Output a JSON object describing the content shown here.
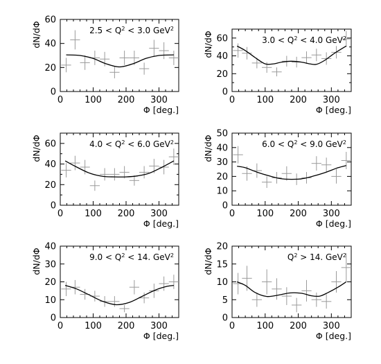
{
  "chart_data": [
    {
      "type": "scatter",
      "title": "",
      "label_parts": [
        "2.5 < Q",
        "2",
        " < 3.0 GeV",
        "2"
      ],
      "xlabel": "Φ [deg.]",
      "ylabel": "dN/dΦ",
      "xlim": [
        0,
        360
      ],
      "ylim": [
        0,
        60
      ],
      "xticks": [
        0,
        100,
        200,
        300
      ],
      "yticks": [
        0,
        20,
        40,
        60
      ],
      "grid": false,
      "points": [
        {
          "x": 18,
          "y": 22,
          "yerr": 6
        },
        {
          "x": 45,
          "y": 43,
          "yerr": 8
        },
        {
          "x": 75,
          "y": 24,
          "yerr": 6
        },
        {
          "x": 105,
          "y": 28,
          "yerr": 6
        },
        {
          "x": 135,
          "y": 27,
          "yerr": 6
        },
        {
          "x": 165,
          "y": 16,
          "yerr": 5
        },
        {
          "x": 195,
          "y": 28,
          "yerr": 6
        },
        {
          "x": 225,
          "y": 28,
          "yerr": 6
        },
        {
          "x": 255,
          "y": 19,
          "yerr": 5
        },
        {
          "x": 285,
          "y": 36,
          "yerr": 7
        },
        {
          "x": 315,
          "y": 34,
          "yerr": 7
        },
        {
          "x": 345,
          "y": 28,
          "yerr": 6
        }
      ],
      "fit": [
        [
          18,
          30.5
        ],
        [
          60,
          30
        ],
        [
          100,
          27.5
        ],
        [
          140,
          23
        ],
        [
          180,
          20.5
        ],
        [
          220,
          23
        ],
        [
          260,
          27.5
        ],
        [
          300,
          30
        ],
        [
          345,
          30.5
        ]
      ]
    },
    {
      "type": "scatter",
      "title": "",
      "label_parts": [
        "3.0 < Q",
        "2",
        " < 4.0 GeV",
        "2"
      ],
      "xlabel": "Φ [deg.]",
      "ylabel": "dN/dΦ",
      "xlim": [
        0,
        360
      ],
      "ylim": [
        0,
        70
      ],
      "xticks": [
        0,
        100,
        200,
        300
      ],
      "yticks": [
        0,
        10,
        20,
        30,
        40,
        50,
        60,
        70
      ],
      "ytick_labels": [
        0,
        20,
        40,
        60
      ],
      "grid": false,
      "points": [
        {
          "x": 18,
          "y": 46,
          "yerr": 8
        },
        {
          "x": 45,
          "y": 43,
          "yerr": 7
        },
        {
          "x": 75,
          "y": 32,
          "yerr": 6
        },
        {
          "x": 105,
          "y": 27,
          "yerr": 6
        },
        {
          "x": 135,
          "y": 22,
          "yerr": 5
        },
        {
          "x": 165,
          "y": 34,
          "yerr": 6
        },
        {
          "x": 195,
          "y": 33,
          "yerr": 6
        },
        {
          "x": 225,
          "y": 38,
          "yerr": 7
        },
        {
          "x": 255,
          "y": 41,
          "yerr": 7
        },
        {
          "x": 285,
          "y": 37,
          "yerr": 7
        },
        {
          "x": 315,
          "y": 44,
          "yerr": 7
        },
        {
          "x": 345,
          "y": 59,
          "yerr": 9
        }
      ],
      "fit": [
        [
          15,
          51
        ],
        [
          40,
          46
        ],
        [
          70,
          38
        ],
        [
          100,
          31
        ],
        [
          125,
          31
        ],
        [
          150,
          33
        ],
        [
          180,
          34
        ],
        [
          210,
          33
        ],
        [
          235,
          31
        ],
        [
          255,
          30.5
        ],
        [
          280,
          35
        ],
        [
          310,
          43
        ],
        [
          345,
          51
        ]
      ]
    },
    {
      "type": "scatter",
      "title": "",
      "label_parts": [
        "4.0 < Q",
        "2",
        " < 6.0 GeV",
        "2"
      ],
      "xlabel": "Φ [deg.]",
      "ylabel": "dN/dΦ",
      "xlim": [
        0,
        360
      ],
      "ylim": [
        0,
        70
      ],
      "xticks": [
        0,
        100,
        200,
        300
      ],
      "yticks": [
        0,
        10,
        20,
        30,
        40,
        50,
        60,
        70
      ],
      "ytick_labels": [
        0,
        20,
        40,
        60
      ],
      "grid": false,
      "points": [
        {
          "x": 18,
          "y": 34,
          "yerr": 7
        },
        {
          "x": 45,
          "y": 41,
          "yerr": 7
        },
        {
          "x": 75,
          "y": 37,
          "yerr": 7
        },
        {
          "x": 105,
          "y": 19,
          "yerr": 5
        },
        {
          "x": 135,
          "y": 30,
          "yerr": 6
        },
        {
          "x": 165,
          "y": 30,
          "yerr": 6
        },
        {
          "x": 195,
          "y": 32,
          "yerr": 6
        },
        {
          "x": 225,
          "y": 24,
          "yerr": 5
        },
        {
          "x": 255,
          "y": 32,
          "yerr": 6
        },
        {
          "x": 285,
          "y": 38,
          "yerr": 7
        },
        {
          "x": 315,
          "y": 37,
          "yerr": 7
        },
        {
          "x": 345,
          "y": 47,
          "yerr": 8
        }
      ],
      "fit": [
        [
          15,
          43
        ],
        [
          50,
          37
        ],
        [
          90,
          31
        ],
        [
          130,
          28
        ],
        [
          165,
          27.5
        ],
        [
          200,
          27.5
        ],
        [
          235,
          28.5
        ],
        [
          270,
          31
        ],
        [
          310,
          37
        ],
        [
          345,
          43
        ]
      ]
    },
    {
      "type": "scatter",
      "title": "",
      "label_parts": [
        "6.0 < Q",
        "2",
        " < 9.0 GeV",
        "2"
      ],
      "xlabel": "Φ [deg.]",
      "ylabel": "dN/dΦ",
      "xlim": [
        0,
        360
      ],
      "ylim": [
        0,
        50
      ],
      "xticks": [
        0,
        100,
        200,
        300
      ],
      "yticks": [
        0,
        10,
        20,
        30,
        40,
        50
      ],
      "grid": false,
      "points": [
        {
          "x": 18,
          "y": 35,
          "yerr": 6
        },
        {
          "x": 45,
          "y": 22,
          "yerr": 5
        },
        {
          "x": 75,
          "y": 24,
          "yerr": 5
        },
        {
          "x": 105,
          "y": 16,
          "yerr": 4
        },
        {
          "x": 135,
          "y": 19,
          "yerr": 4
        },
        {
          "x": 165,
          "y": 22,
          "yerr": 5
        },
        {
          "x": 195,
          "y": 18,
          "yerr": 4
        },
        {
          "x": 225,
          "y": 19,
          "yerr": 4
        },
        {
          "x": 255,
          "y": 29,
          "yerr": 5
        },
        {
          "x": 285,
          "y": 28,
          "yerr": 5
        },
        {
          "x": 315,
          "y": 20,
          "yerr": 5
        },
        {
          "x": 345,
          "y": 31,
          "yerr": 6
        }
      ],
      "fit": [
        [
          15,
          27
        ],
        [
          40,
          26
        ],
        [
          75,
          23
        ],
        [
          110,
          20.5
        ],
        [
          145,
          18.5
        ],
        [
          180,
          18
        ],
        [
          215,
          18.5
        ],
        [
          250,
          20.5
        ],
        [
          285,
          23
        ],
        [
          320,
          26
        ],
        [
          345,
          27.5
        ]
      ]
    },
    {
      "type": "scatter",
      "title": "",
      "label_parts": [
        "9.0 < Q",
        "2",
        " < 14. GeV",
        "2"
      ],
      "xlabel": "Φ [deg.]",
      "ylabel": "dN/dΦ",
      "xlim": [
        0,
        360
      ],
      "ylim": [
        0,
        40
      ],
      "xticks": [
        0,
        100,
        200,
        300
      ],
      "yticks": [
        0,
        10,
        20,
        30,
        40
      ],
      "grid": false,
      "points": [
        {
          "x": 18,
          "y": 16,
          "yerr": 4
        },
        {
          "x": 45,
          "y": 17,
          "yerr": 4
        },
        {
          "x": 75,
          "y": 13,
          "yerr": 3
        },
        {
          "x": 105,
          "y": 12,
          "yerr": 3
        },
        {
          "x": 135,
          "y": 9,
          "yerr": 3
        },
        {
          "x": 165,
          "y": 9,
          "yerr": 3
        },
        {
          "x": 195,
          "y": 5,
          "yerr": 2
        },
        {
          "x": 225,
          "y": 17,
          "yerr": 4
        },
        {
          "x": 255,
          "y": 11,
          "yerr": 3
        },
        {
          "x": 285,
          "y": 15,
          "yerr": 4
        },
        {
          "x": 315,
          "y": 19,
          "yerr": 4
        },
        {
          "x": 345,
          "y": 20,
          "yerr": 4
        }
      ],
      "fit": [
        [
          15,
          18
        ],
        [
          50,
          16
        ],
        [
          90,
          12.5
        ],
        [
          130,
          9
        ],
        [
          170,
          7.2
        ],
        [
          210,
          8.5
        ],
        [
          250,
          12
        ],
        [
          290,
          15.5
        ],
        [
          325,
          17.5
        ],
        [
          345,
          18
        ]
      ]
    },
    {
      "type": "scatter",
      "title": "",
      "label_parts": [
        "Q",
        "2",
        " > 14. GeV",
        "2"
      ],
      "xlabel": "Φ [deg.]",
      "ylabel": "dN/dΦ",
      "xlim": [
        0,
        360
      ],
      "ylim": [
        0,
        20
      ],
      "xticks": [
        0,
        100,
        200,
        300
      ],
      "yticks": [
        0,
        5,
        10,
        15,
        20
      ],
      "grid": false,
      "points": [
        {
          "x": 18,
          "y": 9.5,
          "yerr": 3
        },
        {
          "x": 45,
          "y": 11,
          "yerr": 3.5
        },
        {
          "x": 75,
          "y": 5,
          "yerr": 2
        },
        {
          "x": 105,
          "y": 10,
          "yerr": 3.5
        },
        {
          "x": 135,
          "y": 8,
          "yerr": 3
        },
        {
          "x": 165,
          "y": 6,
          "yerr": 2.5
        },
        {
          "x": 195,
          "y": 3.5,
          "yerr": 2
        },
        {
          "x": 225,
          "y": 7.5,
          "yerr": 3
        },
        {
          "x": 255,
          "y": 5,
          "yerr": 2
        },
        {
          "x": 285,
          "y": 4.5,
          "yerr": 2
        },
        {
          "x": 315,
          "y": 10,
          "yerr": 3
        },
        {
          "x": 345,
          "y": 14,
          "yerr": 4
        }
      ],
      "fit": [
        [
          15,
          10
        ],
        [
          40,
          9
        ],
        [
          70,
          7
        ],
        [
          105,
          5.9
        ],
        [
          140,
          6.3
        ],
        [
          175,
          6.9
        ],
        [
          210,
          6.8
        ],
        [
          240,
          6.1
        ],
        [
          265,
          6
        ],
        [
          290,
          7
        ],
        [
          320,
          8.5
        ],
        [
          345,
          10
        ]
      ]
    }
  ]
}
